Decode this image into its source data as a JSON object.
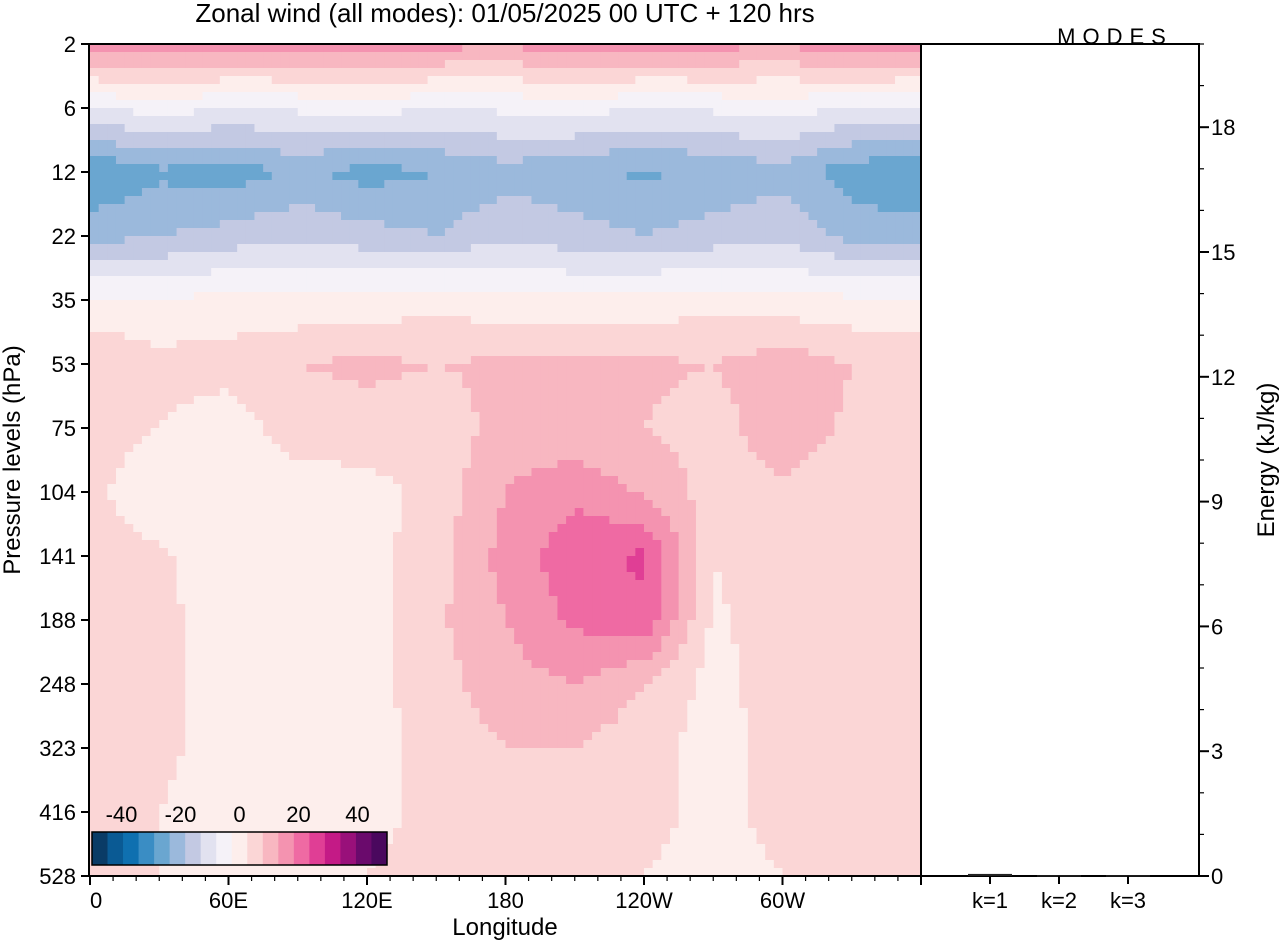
{
  "title": "Zonal wind (all modes):  01/05/2025  00 UTC  + 120 hrs",
  "logo": "MODES",
  "chart_data": [
    {
      "type": "heatmap",
      "title": "Zonal wind (all modes):  01/05/2025  00 UTC  + 120 hrs",
      "xlabel": "Longitude",
      "ylabel": "Pressure levels (hPa)",
      "xticks": [
        "0",
        "60E",
        "120E",
        "180",
        "120W",
        "60W"
      ],
      "xlim_deg_east": [
        0,
        360
      ],
      "yticks": [
        "2",
        "6",
        "12",
        "22",
        "35",
        "53",
        "75",
        "104",
        "141",
        "188",
        "248",
        "323",
        "416",
        "528"
      ],
      "colorbar": {
        "ticks": [
          "-40",
          "-20",
          "0",
          "20",
          "40"
        ],
        "range": [
          -50,
          50
        ],
        "step": 5,
        "colors": [
          "#0a3b66",
          "#0a5a94",
          "#0f70b0",
          "#3a8dc4",
          "#6aa6d0",
          "#9bb9dc",
          "#c3c9e3",
          "#e2e2f0",
          "#f5f2f8",
          "#fdeeec",
          "#fbd6d6",
          "#f8b7c1",
          "#f493b0",
          "#ef6aa3",
          "#e03e95",
          "#c41a86",
          "#99107a",
          "#6a0a6c",
          "#4a085e"
        ]
      },
      "wind_field_ms": {
        "levels_hpa": [
          2,
          6,
          12,
          22,
          35,
          53,
          75,
          104,
          141,
          188,
          248,
          323,
          416,
          528
        ],
        "longitudes_deg_east": [
          0,
          30,
          60,
          90,
          120,
          150,
          180,
          210,
          240,
          270,
          300,
          330
        ],
        "values": [
          [
            12,
            14,
            12,
            12,
            14,
            12,
            10,
            14,
            12,
            12,
            10,
            14
          ],
          [
            -10,
            -8,
            -10,
            -9,
            -8,
            -10,
            -9,
            -8,
            -10,
            -9,
            -8,
            -10
          ],
          [
            -30,
            -26,
            -28,
            -24,
            -27,
            -25,
            -22,
            -24,
            -26,
            -24,
            -22,
            -28
          ],
          [
            -22,
            -20,
            -18,
            -16,
            -18,
            -20,
            -16,
            -18,
            -20,
            -18,
            -16,
            -22
          ],
          [
            -4,
            -5,
            -3,
            -4,
            -3,
            -2,
            -3,
            -4,
            -3,
            -2,
            -3,
            -4
          ],
          [
            5,
            2,
            2,
            5,
            6,
            5,
            6,
            6,
            6,
            5,
            8,
            5
          ],
          [
            3,
            0,
            -3,
            3,
            3,
            2,
            7,
            6,
            5,
            3,
            8,
            4
          ],
          [
            2,
            -5,
            -3,
            -3,
            -2,
            2,
            10,
            14,
            9,
            3,
            4,
            1
          ],
          [
            3,
            1,
            -3,
            -4,
            -2,
            3,
            12,
            18,
            21,
            0,
            4,
            1
          ],
          [
            2,
            1,
            -2,
            -4,
            -2,
            4,
            10,
            16,
            19,
            -1,
            3,
            1
          ],
          [
            1,
            1,
            -2,
            -4,
            -2,
            3,
            8,
            10,
            5,
            -2,
            3,
            1
          ],
          [
            1,
            1,
            -2,
            -3,
            -2,
            2,
            5,
            5,
            2,
            -2,
            2,
            1
          ],
          [
            0,
            0,
            -2,
            -2,
            -1,
            1,
            2,
            2,
            1,
            -1,
            1,
            0
          ],
          [
            0,
            0,
            -1,
            -1,
            0,
            1,
            1,
            1,
            0,
            -1,
            0,
            0
          ]
        ]
      }
    },
    {
      "type": "bar",
      "ylabel": "Energy (kJ/kg)",
      "categories": [
        "k=1",
        "k=2",
        "k=3"
      ],
      "values": [
        0.05,
        0.02,
        0.02
      ],
      "ylim": [
        0,
        20
      ],
      "yticks": [
        "0",
        "3",
        "6",
        "9",
        "12",
        "15",
        "18"
      ]
    }
  ]
}
